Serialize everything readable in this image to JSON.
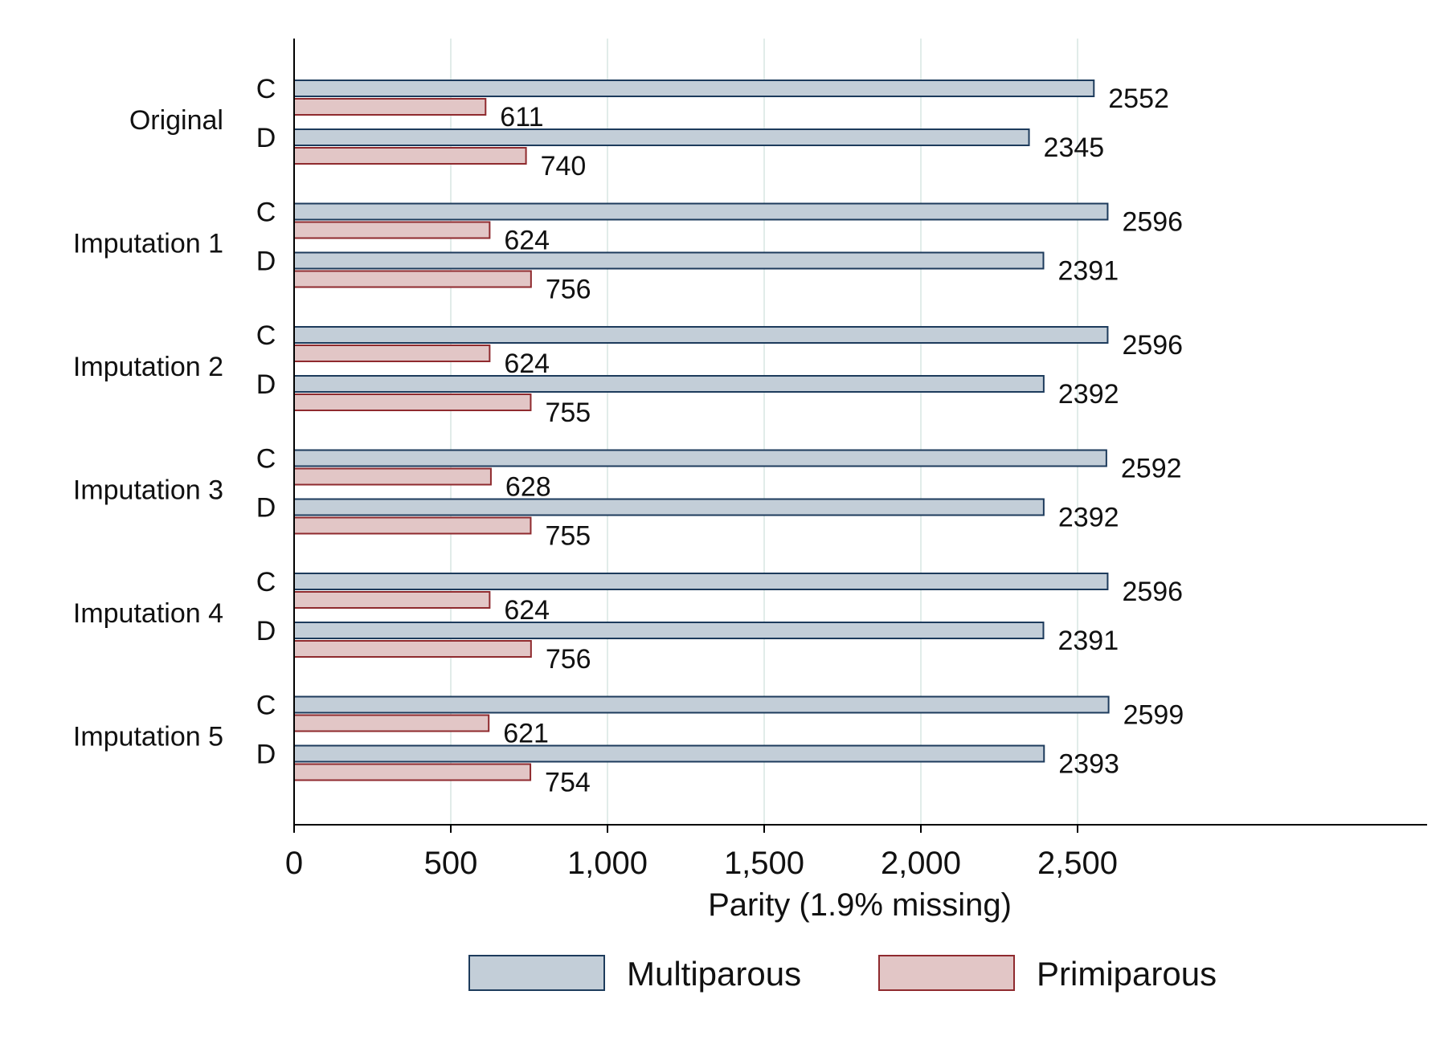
{
  "chart_data": {
    "type": "bar",
    "orientation": "horizontal",
    "xlabel": "Parity (1.9% missing)",
    "xlim": [
      0,
      3600
    ],
    "xticks": [
      0,
      500,
      1000,
      1500,
      2000,
      2500
    ],
    "xtick_labels": [
      "0",
      "500",
      "1,000",
      "1,500",
      "2,000",
      "2,500"
    ],
    "grid": true,
    "legend_position": "bottom",
    "groups": [
      {
        "label": "Original",
        "subgroups": [
          {
            "label": "C",
            "values": [
              2552,
              611
            ]
          },
          {
            "label": "D",
            "values": [
              2345,
              740
            ]
          }
        ]
      },
      {
        "label": "Imputation 1",
        "subgroups": [
          {
            "label": "C",
            "values": [
              2596,
              624
            ]
          },
          {
            "label": "D",
            "values": [
              2391,
              756
            ]
          }
        ]
      },
      {
        "label": "Imputation 2",
        "subgroups": [
          {
            "label": "C",
            "values": [
              2596,
              624
            ]
          },
          {
            "label": "D",
            "values": [
              2392,
              755
            ]
          }
        ]
      },
      {
        "label": "Imputation 3",
        "subgroups": [
          {
            "label": "C",
            "values": [
              2592,
              628
            ]
          },
          {
            "label": "D",
            "values": [
              2392,
              755
            ]
          }
        ]
      },
      {
        "label": "Imputation 4",
        "subgroups": [
          {
            "label": "C",
            "values": [
              2596,
              624
            ]
          },
          {
            "label": "D",
            "values": [
              2391,
              756
            ]
          }
        ]
      },
      {
        "label": "Imputation 5",
        "subgroups": [
          {
            "label": "C",
            "values": [
              2599,
              621
            ]
          },
          {
            "label": "D",
            "values": [
              2393,
              754
            ]
          }
        ]
      }
    ],
    "series": [
      {
        "name": "Multiparous",
        "fill": "#c3ced8",
        "stroke": "#1d3b5c"
      },
      {
        "name": "Primiparous",
        "fill": "#e2c6c6",
        "stroke": "#8f2a2e"
      }
    ]
  }
}
